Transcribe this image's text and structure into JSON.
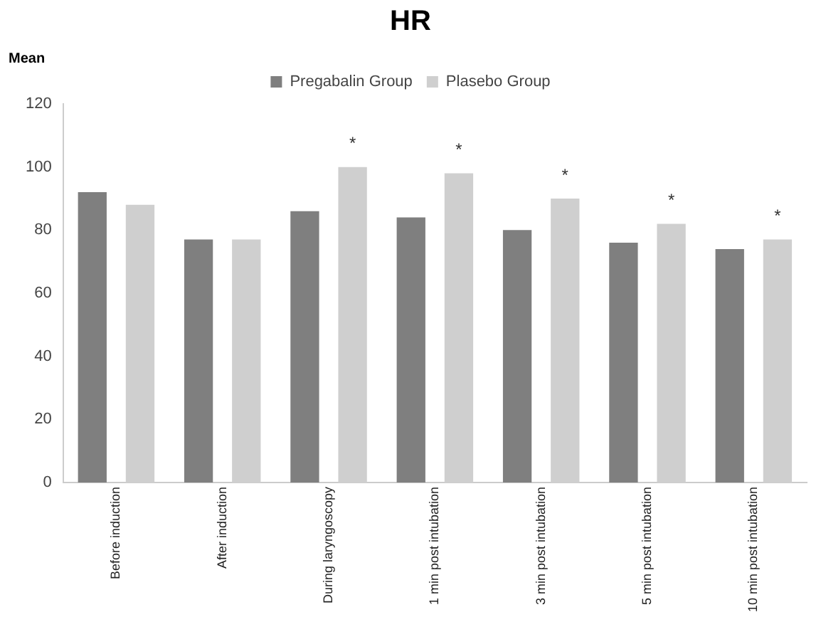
{
  "chart_data": {
    "type": "bar",
    "title": "HR",
    "ylabel": "Mean",
    "categories": [
      "Before induction",
      "After induction",
      "During laryngoscopy",
      "1 min post intubation",
      "3 min post intubation",
      "5 min post intubation",
      "10 min post intubation"
    ],
    "series": [
      {
        "name": "Pregabalin Group",
        "color": "#7f7f7f",
        "values": [
          92,
          77,
          86,
          84,
          80,
          76,
          74
        ]
      },
      {
        "name": "Plasebo Group",
        "color": "#cfcfcf",
        "values": [
          88,
          77,
          100,
          98,
          90,
          82,
          77
        ]
      }
    ],
    "ylim": [
      0,
      120
    ],
    "yticks": [
      0,
      20,
      40,
      60,
      80,
      100,
      120
    ],
    "grid": false,
    "legend": "top",
    "annotations": [
      "*",
      "*",
      "*",
      "*",
      "*"
    ]
  }
}
